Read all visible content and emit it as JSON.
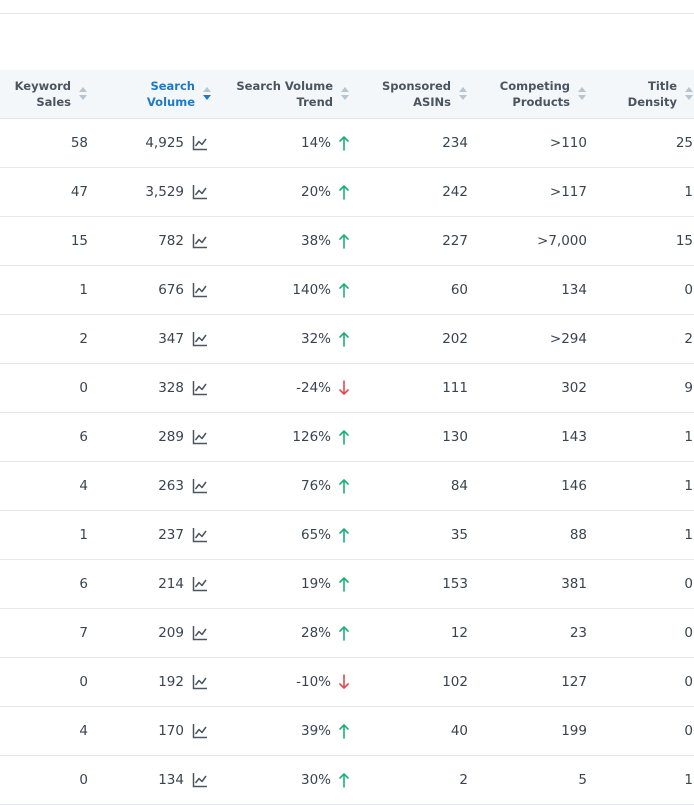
{
  "table": {
    "headers": [
      [
        "Keyword",
        "Sales"
      ],
      [
        "Search",
        "Volume"
      ],
      [
        "Search Volume",
        "Trend"
      ],
      [
        "Sponsored",
        "ASINs"
      ],
      [
        "Competing",
        "Products"
      ],
      [
        "Title",
        "Density"
      ]
    ],
    "rows": [
      [
        58,
        "4,925",
        "14%",
        234,
        ">110",
        25
      ],
      [
        47,
        "3,529",
        "20%",
        242,
        ">117",
        1
      ],
      [
        15,
        782,
        "38%",
        227,
        ">7,000",
        15
      ],
      [
        1,
        676,
        "140%",
        60,
        134,
        0
      ],
      [
        2,
        347,
        "32%",
        202,
        ">294",
        2
      ],
      [
        0,
        328,
        "-24%",
        111,
        302,
        9
      ],
      [
        6,
        289,
        "126%",
        130,
        143,
        1
      ],
      [
        4,
        263,
        "76%",
        84,
        146,
        1
      ],
      [
        1,
        237,
        "65%",
        35,
        88,
        1
      ],
      [
        6,
        214,
        "19%",
        153,
        381,
        0
      ],
      [
        7,
        209,
        "28%",
        12,
        23,
        0
      ],
      [
        0,
        192,
        "-10%",
        102,
        127,
        0
      ],
      [
        4,
        170,
        "39%",
        40,
        199,
        0
      ],
      [
        0,
        134,
        "30%",
        2,
        5,
        1
      ]
    ]
  }
}
